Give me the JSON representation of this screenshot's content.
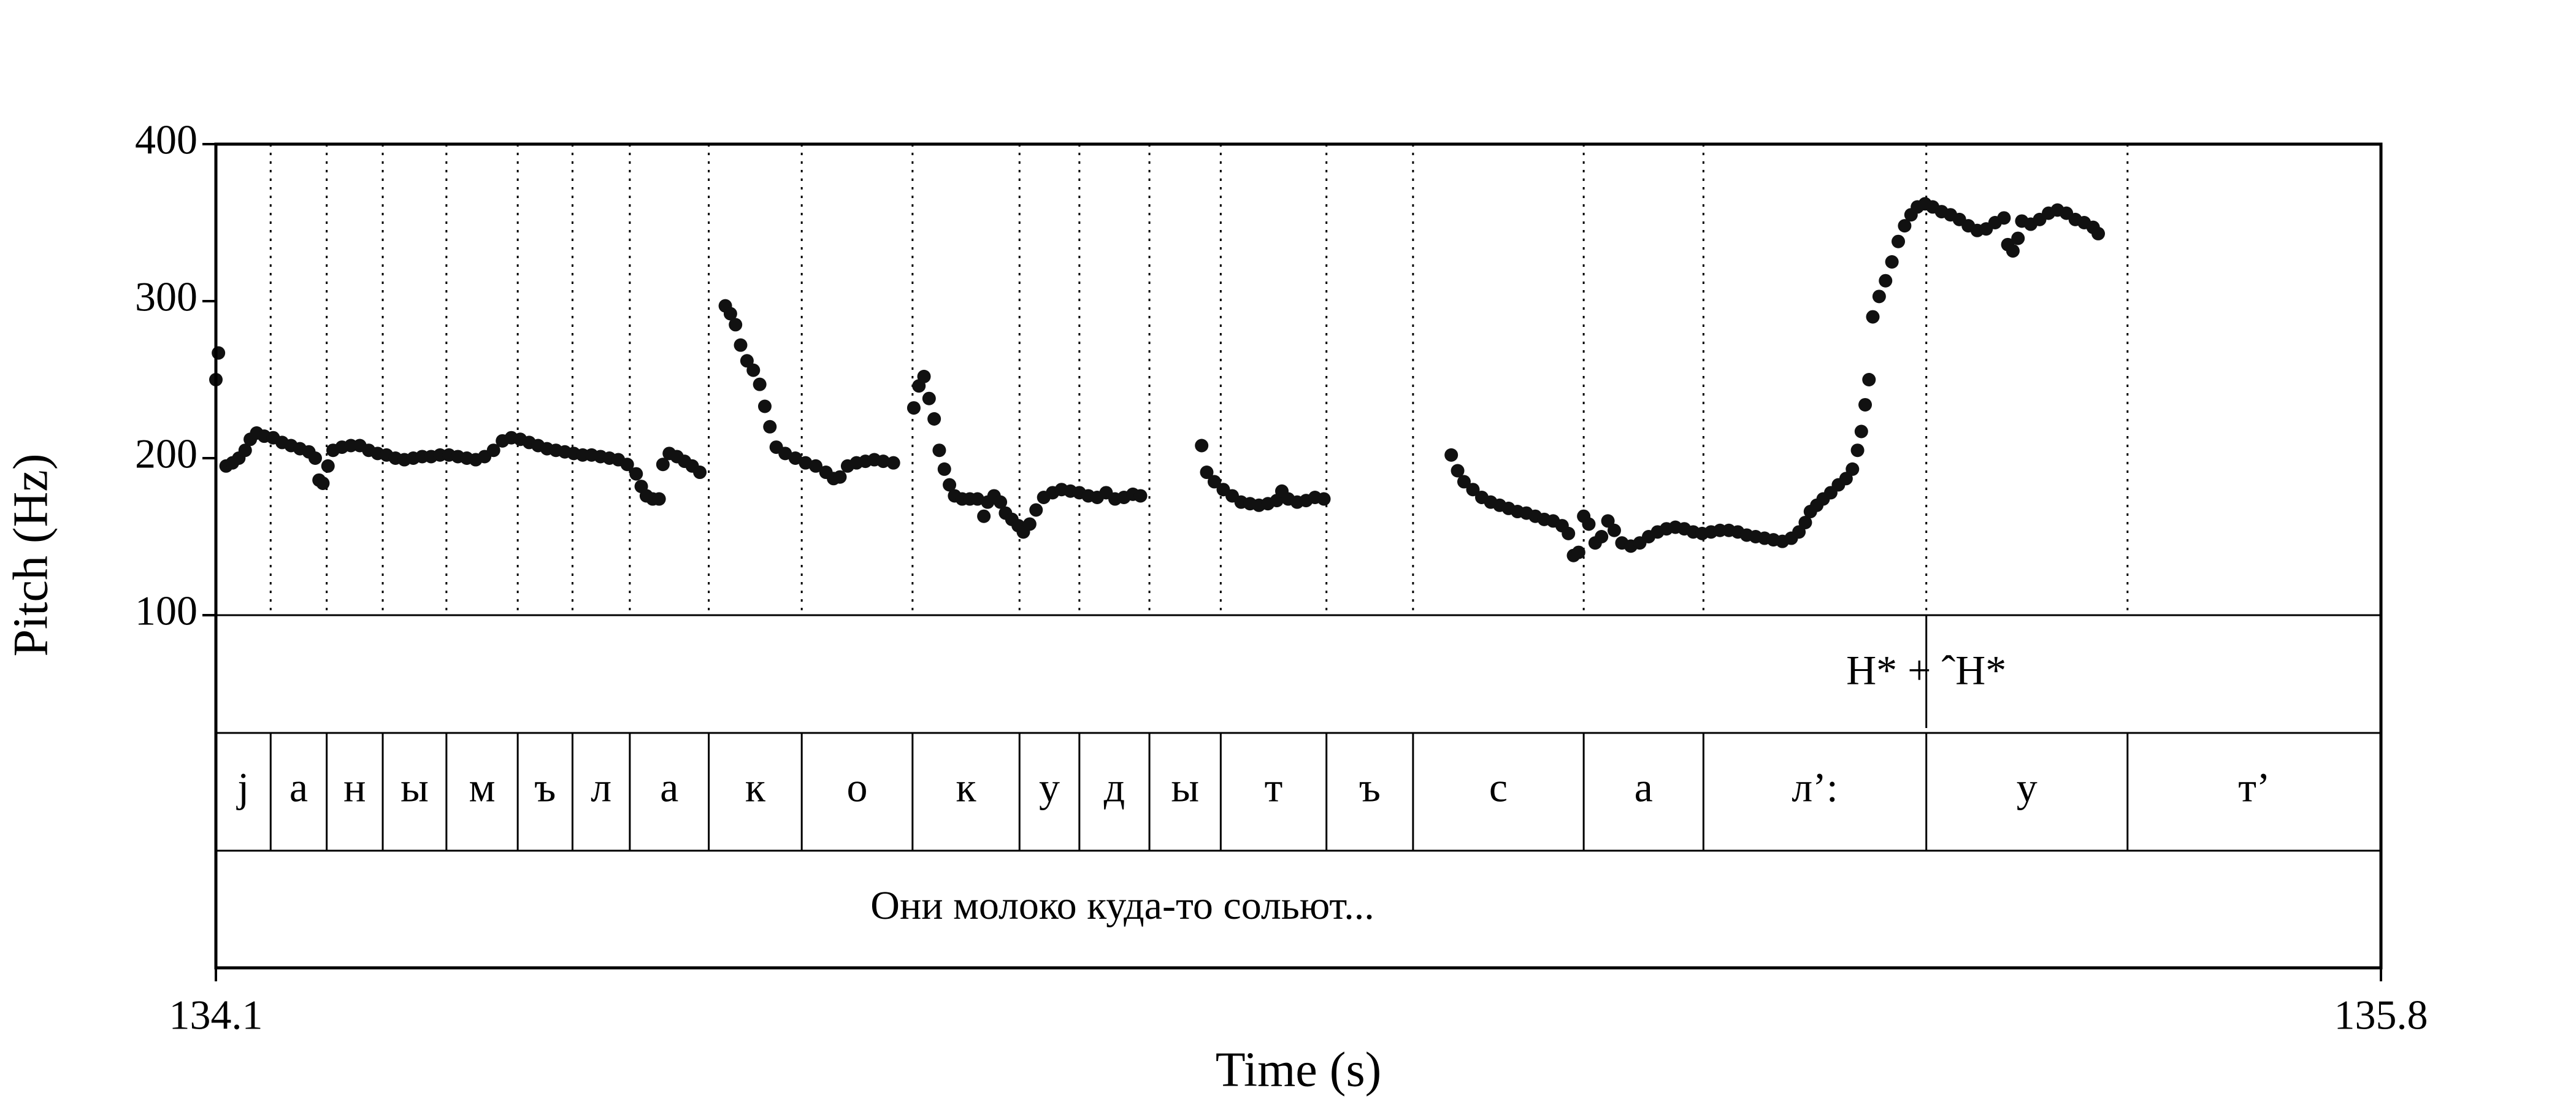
{
  "chart_data": {
    "type": "scatter",
    "xlabel": "Time (s)",
    "ylabel": "Pitch (Hz)",
    "xlim": [
      134.1,
      135.8
    ],
    "ylim": [
      100,
      400
    ],
    "x_tick_labels": [
      "134.1",
      "135.8"
    ],
    "y_ticks": [
      100,
      200,
      300,
      400
    ],
    "y_tick_labels": [
      "100",
      "200",
      "300",
      "400"
    ],
    "boundaries": [
      134.143,
      134.187,
      134.231,
      134.281,
      134.337,
      134.38,
      134.425,
      134.487,
      134.56,
      134.647,
      134.731,
      134.778,
      134.833,
      134.889,
      134.972,
      135.04,
      135.174,
      135.268,
      135.443,
      135.601
    ],
    "tone_tier": {
      "label": "H* + ˆH*",
      "mark_time": 135.443
    },
    "segments": [
      {
        "label": "j",
        "start": 134.1,
        "end": 134.143
      },
      {
        "label": "а",
        "start": 134.143,
        "end": 134.187
      },
      {
        "label": "н",
        "start": 134.187,
        "end": 134.231
      },
      {
        "label": "ы",
        "start": 134.231,
        "end": 134.281
      },
      {
        "label": "м",
        "start": 134.281,
        "end": 134.337
      },
      {
        "label": "ъ",
        "start": 134.337,
        "end": 134.38
      },
      {
        "label": "л",
        "start": 134.38,
        "end": 134.425
      },
      {
        "label": "а",
        "start": 134.425,
        "end": 134.487
      },
      {
        "label": "к",
        "start": 134.487,
        "end": 134.56
      },
      {
        "label": "о",
        "start": 134.56,
        "end": 134.647
      },
      {
        "label": "к",
        "start": 134.647,
        "end": 134.731
      },
      {
        "label": "у",
        "start": 134.731,
        "end": 134.778
      },
      {
        "label": "д",
        "start": 134.778,
        "end": 134.833
      },
      {
        "label": "ы",
        "start": 134.833,
        "end": 134.889
      },
      {
        "label": "т",
        "start": 134.889,
        "end": 134.972
      },
      {
        "label": "ъ",
        "start": 134.972,
        "end": 135.04
      },
      {
        "label": "с",
        "start": 135.04,
        "end": 135.174
      },
      {
        "label": "а",
        "start": 135.174,
        "end": 135.268
      },
      {
        "label": "л’:",
        "start": 135.268,
        "end": 135.443
      },
      {
        "label": "у",
        "start": 135.443,
        "end": 135.601
      },
      {
        "label": "т’",
        "start": 135.601,
        "end": 135.8
      }
    ],
    "sentence": "Они молоко куда-то сольют...",
    "pitch_series": [
      [
        [
          134.1,
          250
        ],
        [
          134.102,
          267
        ]
      ],
      [
        [
          134.108,
          195
        ],
        [
          134.113,
          197
        ],
        [
          134.118,
          200
        ],
        [
          134.123,
          205
        ],
        [
          134.127,
          212
        ],
        [
          134.132,
          216
        ],
        [
          134.138,
          214
        ],
        [
          134.145,
          213
        ],
        [
          134.152,
          210
        ],
        [
          134.159,
          208
        ],
        [
          134.166,
          206
        ],
        [
          134.173,
          204
        ],
        [
          134.178,
          200
        ],
        [
          134.181,
          186
        ],
        [
          134.184,
          184
        ],
        [
          134.188,
          195
        ],
        [
          134.192,
          205
        ],
        [
          134.199,
          207
        ],
        [
          134.206,
          208
        ],
        [
          134.213,
          208
        ],
        [
          134.22,
          205
        ],
        [
          134.227,
          203
        ],
        [
          134.234,
          202
        ],
        [
          134.241,
          200
        ],
        [
          134.248,
          199
        ],
        [
          134.255,
          200
        ],
        [
          134.262,
          201
        ],
        [
          134.269,
          201
        ],
        [
          134.276,
          202
        ],
        [
          134.283,
          202
        ],
        [
          134.29,
          201
        ],
        [
          134.297,
          200
        ],
        [
          134.304,
          199
        ],
        [
          134.311,
          201
        ],
        [
          134.318,
          205
        ],
        [
          134.325,
          211
        ],
        [
          134.332,
          213
        ],
        [
          134.339,
          212
        ],
        [
          134.346,
          210
        ],
        [
          134.353,
          208
        ],
        [
          134.36,
          206
        ],
        [
          134.367,
          205
        ],
        [
          134.374,
          204
        ],
        [
          134.381,
          203
        ],
        [
          134.388,
          202
        ],
        [
          134.395,
          202
        ],
        [
          134.402,
          201
        ],
        [
          134.409,
          200
        ],
        [
          134.416,
          199
        ],
        [
          134.423,
          196
        ],
        [
          134.43,
          190
        ],
        [
          134.434,
          182
        ],
        [
          134.438,
          176
        ],
        [
          134.443,
          174
        ],
        [
          134.448,
          174
        ]
      ],
      [
        [
          134.451,
          196
        ],
        [
          134.456,
          203
        ],
        [
          134.462,
          201
        ],
        [
          134.468,
          198
        ],
        [
          134.474,
          195
        ],
        [
          134.48,
          191
        ]
      ],
      [
        [
          134.5,
          297
        ],
        [
          134.504,
          292
        ],
        [
          134.508,
          285
        ],
        [
          134.512,
          272
        ],
        [
          134.517,
          262
        ],
        [
          134.522,
          256
        ],
        [
          134.527,
          247
        ],
        [
          134.531,
          233
        ],
        [
          134.535,
          220
        ],
        [
          134.54,
          207
        ],
        [
          134.547,
          203
        ],
        [
          134.555,
          200
        ],
        [
          134.563,
          197
        ],
        [
          134.571,
          195
        ],
        [
          134.579,
          191
        ],
        [
          134.585,
          187
        ],
        [
          134.59,
          188
        ],
        [
          134.596,
          195
        ],
        [
          134.603,
          197
        ],
        [
          134.61,
          198
        ],
        [
          134.617,
          199
        ],
        [
          134.624,
          198
        ],
        [
          134.632,
          197
        ]
      ],
      [
        [
          134.648,
          232
        ],
        [
          134.652,
          246
        ],
        [
          134.656,
          252
        ],
        [
          134.66,
          238
        ],
        [
          134.664,
          225
        ],
        [
          134.668,
          205
        ],
        [
          134.672,
          193
        ],
        [
          134.676,
          183
        ],
        [
          134.68,
          176
        ],
        [
          134.686,
          174
        ],
        [
          134.692,
          174
        ],
        [
          134.698,
          174
        ]
      ],
      [
        [
          134.703,
          163
        ],
        [
          134.706,
          172
        ],
        [
          134.711,
          176
        ],
        [
          134.716,
          172
        ],
        [
          134.72,
          165
        ],
        [
          134.725,
          161
        ],
        [
          134.73,
          157
        ],
        [
          134.734,
          153
        ],
        [
          134.739,
          158
        ],
        [
          134.744,
          167
        ],
        [
          134.75,
          175
        ],
        [
          134.757,
          178
        ],
        [
          134.764,
          180
        ],
        [
          134.771,
          179
        ],
        [
          134.778,
          178
        ],
        [
          134.785,
          176
        ],
        [
          134.792,
          175
        ],
        [
          134.799,
          178
        ],
        [
          134.806,
          174
        ],
        [
          134.813,
          175
        ],
        [
          134.82,
          177
        ],
        [
          134.826,
          176
        ]
      ],
      [
        [
          134.874,
          208
        ],
        [
          134.878,
          191
        ],
        [
          134.884,
          185
        ],
        [
          134.891,
          180
        ],
        [
          134.898,
          176
        ],
        [
          134.905,
          172
        ],
        [
          134.912,
          171
        ],
        [
          134.919,
          170
        ],
        [
          134.926,
          171
        ],
        [
          134.933,
          173
        ],
        [
          134.937,
          179
        ],
        [
          134.942,
          174
        ],
        [
          134.949,
          172
        ],
        [
          134.956,
          173
        ],
        [
          134.963,
          175
        ],
        [
          134.97,
          174
        ]
      ],
      [
        [
          135.07,
          202
        ],
        [
          135.075,
          192
        ],
        [
          135.08,
          185
        ],
        [
          135.087,
          180
        ],
        [
          135.094,
          175
        ],
        [
          135.101,
          172
        ],
        [
          135.108,
          170
        ],
        [
          135.115,
          168
        ],
        [
          135.122,
          166
        ],
        [
          135.129,
          165
        ],
        [
          135.136,
          163
        ],
        [
          135.143,
          161
        ],
        [
          135.15,
          160
        ],
        [
          135.157,
          157
        ],
        [
          135.162,
          152
        ],
        [
          135.166,
          138
        ],
        [
          135.17,
          140
        ],
        [
          135.174,
          163
        ],
        [
          135.178,
          158
        ],
        [
          135.183,
          146
        ],
        [
          135.188,
          150
        ],
        [
          135.193,
          160
        ],
        [
          135.198,
          154
        ],
        [
          135.204,
          146
        ],
        [
          135.211,
          144
        ],
        [
          135.218,
          146
        ],
        [
          135.225,
          150
        ],
        [
          135.232,
          153
        ],
        [
          135.239,
          155
        ],
        [
          135.246,
          156
        ],
        [
          135.253,
          155
        ],
        [
          135.26,
          153
        ],
        [
          135.267,
          152
        ],
        [
          135.274,
          153
        ],
        [
          135.281,
          154
        ],
        [
          135.288,
          154
        ],
        [
          135.295,
          153
        ],
        [
          135.302,
          151
        ],
        [
          135.309,
          150
        ],
        [
          135.316,
          149
        ],
        [
          135.323,
          148
        ],
        [
          135.33,
          147
        ],
        [
          135.337,
          149
        ],
        [
          135.343,
          153
        ],
        [
          135.348,
          159
        ],
        [
          135.352,
          166
        ],
        [
          135.357,
          170
        ],
        [
          135.362,
          174
        ],
        [
          135.368,
          178
        ],
        [
          135.374,
          183
        ],
        [
          135.38,
          187
        ],
        [
          135.385,
          193
        ],
        [
          135.389,
          205
        ],
        [
          135.392,
          217
        ],
        [
          135.395,
          234
        ],
        [
          135.398,
          250
        ]
      ],
      [
        [
          135.401,
          290
        ],
        [
          135.406,
          303
        ],
        [
          135.411,
          313
        ],
        [
          135.416,
          325
        ],
        [
          135.421,
          338
        ],
        [
          135.426,
          348
        ],
        [
          135.431,
          355
        ],
        [
          135.436,
          360
        ],
        [
          135.442,
          362
        ],
        [
          135.448,
          360
        ],
        [
          135.455,
          357
        ],
        [
          135.462,
          355
        ],
        [
          135.469,
          352
        ],
        [
          135.476,
          348
        ],
        [
          135.483,
          345
        ],
        [
          135.49,
          346
        ],
        [
          135.497,
          350
        ],
        [
          135.504,
          353
        ],
        [
          135.507,
          336
        ],
        [
          135.511,
          332
        ],
        [
          135.515,
          340
        ],
        [
          135.518,
          351
        ],
        [
          135.525,
          349
        ],
        [
          135.532,
          352
        ],
        [
          135.539,
          356
        ],
        [
          135.546,
          358
        ],
        [
          135.553,
          356
        ],
        [
          135.56,
          352
        ],
        [
          135.567,
          350
        ],
        [
          135.574,
          347
        ],
        [
          135.578,
          343
        ]
      ]
    ]
  }
}
